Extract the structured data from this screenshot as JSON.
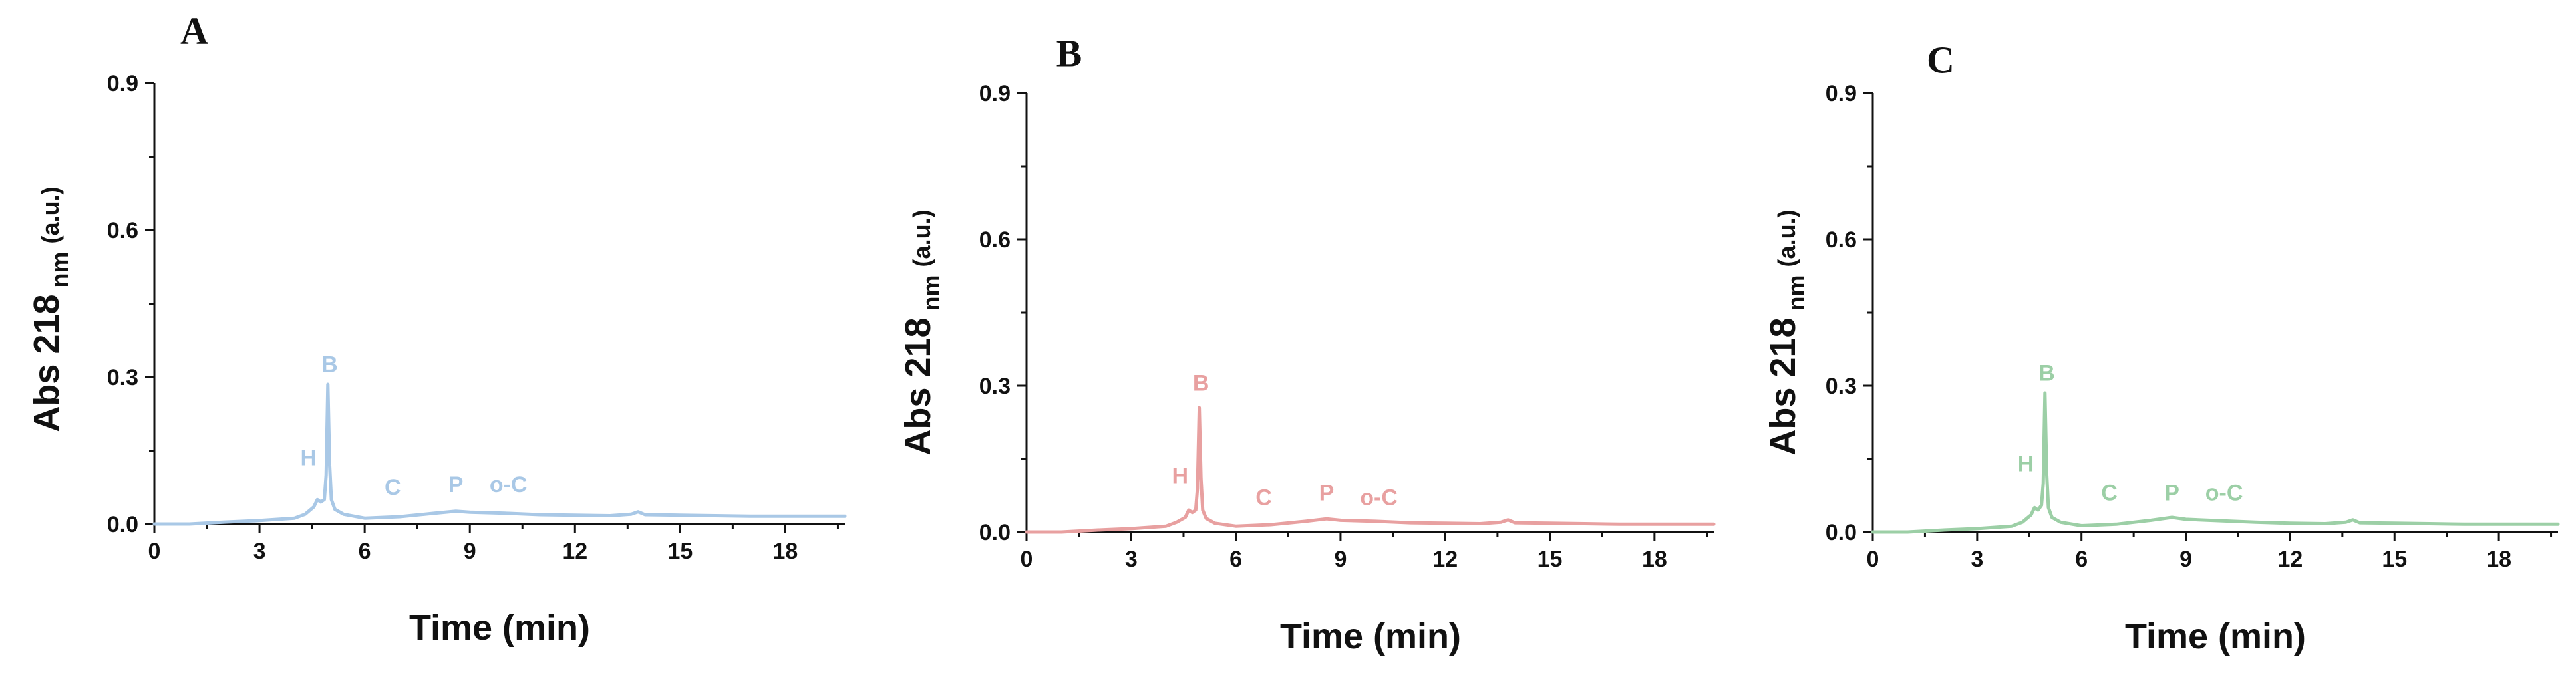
{
  "chart_data": [
    {
      "type": "line",
      "panel_label": "A",
      "color": "#a9c8e6",
      "xlabel": "Time (min)",
      "ylabel_main": "Abs 218",
      "ylabel_sub": "nm",
      "ylabel_unit": "(a.u.)",
      "xlim": [
        0,
        19.7
      ],
      "ylim": [
        0,
        0.9
      ],
      "xticks": [
        0,
        3,
        6,
        9,
        12,
        15,
        18
      ],
      "yticks": [
        "0.0",
        "0.3",
        "0.6",
        "0.9"
      ],
      "series": [
        {
          "x": [
            0,
            1,
            2,
            3,
            4,
            4.3,
            4.55,
            4.65,
            4.75,
            4.85,
            4.9,
            4.95,
            5.0,
            5.05,
            5.15,
            5.4,
            6,
            7,
            8,
            8.6,
            9,
            10,
            11,
            12,
            13,
            13.6,
            13.8,
            14,
            15,
            16,
            17,
            18,
            19,
            19.7
          ],
          "y": [
            0.0,
            0.0,
            0.004,
            0.007,
            0.012,
            0.02,
            0.035,
            0.05,
            0.045,
            0.05,
            0.1,
            0.285,
            0.12,
            0.05,
            0.03,
            0.02,
            0.012,
            0.015,
            0.022,
            0.026,
            0.024,
            0.022,
            0.019,
            0.018,
            0.017,
            0.02,
            0.025,
            0.019,
            0.018,
            0.017,
            0.016,
            0.016,
            0.016,
            0.016
          ]
        }
      ],
      "annotations": [
        {
          "text": "B",
          "x": 5.0,
          "y": 0.31
        },
        {
          "text": "H",
          "x": 4.4,
          "y": 0.12
        },
        {
          "text": "C",
          "x": 6.8,
          "y": 0.06
        },
        {
          "text": "P",
          "x": 8.6,
          "y": 0.065
        },
        {
          "text": "o-C",
          "x": 10.1,
          "y": 0.065
        }
      ]
    },
    {
      "type": "line",
      "panel_label": "B",
      "color": "#e8a0a0",
      "xlabel": "Time (min)",
      "ylabel_main": "Abs 218",
      "ylabel_sub": "nm",
      "ylabel_unit": "(a.u.)",
      "xlim": [
        0,
        19.7
      ],
      "ylim": [
        0,
        0.9
      ],
      "xticks": [
        0,
        3,
        6,
        9,
        12,
        15,
        18
      ],
      "yticks": [
        "0.0",
        "0.3",
        "0.6",
        "0.9"
      ],
      "series": [
        {
          "x": [
            0,
            1,
            2,
            3,
            4,
            4.3,
            4.55,
            4.65,
            4.75,
            4.85,
            4.9,
            4.95,
            5.0,
            5.05,
            5.15,
            5.4,
            6,
            7,
            8,
            8.6,
            9,
            10,
            11,
            12,
            13,
            13.6,
            13.8,
            14,
            15,
            16,
            17,
            18,
            19,
            19.7
          ],
          "y": [
            0.0,
            0.0,
            0.004,
            0.007,
            0.012,
            0.02,
            0.03,
            0.045,
            0.04,
            0.045,
            0.09,
            0.255,
            0.11,
            0.045,
            0.028,
            0.018,
            0.012,
            0.015,
            0.022,
            0.027,
            0.024,
            0.022,
            0.019,
            0.018,
            0.017,
            0.02,
            0.025,
            0.019,
            0.018,
            0.017,
            0.016,
            0.016,
            0.016,
            0.016
          ]
        }
      ],
      "annotations": [
        {
          "text": "B",
          "x": 5.0,
          "y": 0.29
        },
        {
          "text": "H",
          "x": 4.4,
          "y": 0.1
        },
        {
          "text": "C",
          "x": 6.8,
          "y": 0.055
        },
        {
          "text": "P",
          "x": 8.6,
          "y": 0.065
        },
        {
          "text": "o-C",
          "x": 10.1,
          "y": 0.055
        }
      ]
    },
    {
      "type": "line",
      "panel_label": "C",
      "color": "#9ccfa6",
      "xlabel": "Time (min)",
      "ylabel_main": "Abs 218",
      "ylabel_sub": "nm",
      "ylabel_unit": "(a.u.)",
      "xlim": [
        0,
        19.7
      ],
      "ylim": [
        0,
        0.9
      ],
      "xticks": [
        0,
        3,
        6,
        9,
        12,
        15,
        18
      ],
      "yticks": [
        "0.0",
        "0.3",
        "0.6",
        "0.9"
      ],
      "series": [
        {
          "x": [
            0,
            1,
            2,
            3,
            4,
            4.3,
            4.55,
            4.65,
            4.75,
            4.85,
            4.9,
            4.95,
            5.0,
            5.05,
            5.15,
            5.4,
            6,
            7,
            8,
            8.6,
            9,
            10,
            11,
            12,
            13,
            13.6,
            13.8,
            14,
            15,
            16,
            17,
            18,
            19,
            19.7
          ],
          "y": [
            0.0,
            0.0,
            0.004,
            0.007,
            0.012,
            0.02,
            0.035,
            0.05,
            0.045,
            0.055,
            0.1,
            0.285,
            0.12,
            0.05,
            0.03,
            0.02,
            0.013,
            0.016,
            0.024,
            0.03,
            0.026,
            0.023,
            0.02,
            0.018,
            0.017,
            0.02,
            0.025,
            0.019,
            0.018,
            0.017,
            0.016,
            0.016,
            0.016,
            0.016
          ]
        }
      ],
      "annotations": [
        {
          "text": "B",
          "x": 5.0,
          "y": 0.31
        },
        {
          "text": "H",
          "x": 4.4,
          "y": 0.125
        },
        {
          "text": "C",
          "x": 6.8,
          "y": 0.065
        },
        {
          "text": "P",
          "x": 8.6,
          "y": 0.065
        },
        {
          "text": "o-C",
          "x": 10.1,
          "y": 0.065
        }
      ]
    }
  ]
}
